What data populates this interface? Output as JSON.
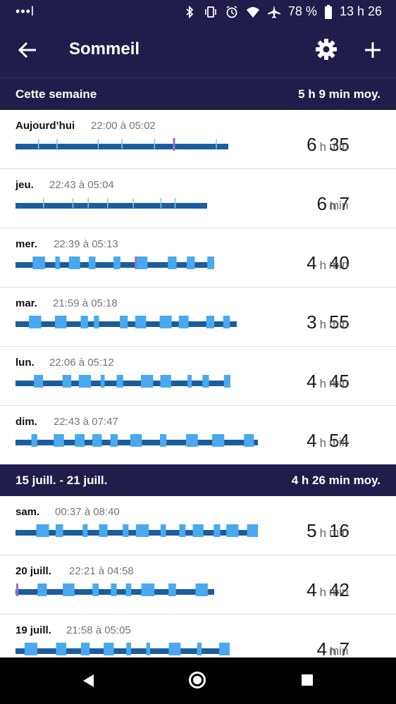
{
  "status": {
    "signal": "•••l",
    "battery": "78 %",
    "time": "13 h 26"
  },
  "header": {
    "title": "Sommeil"
  },
  "colors": {
    "header_bg": "#211d4a",
    "deep": "#1b5d9c",
    "light": "#4aa9ee",
    "awake": "#7fc7f5",
    "rem": "#9a6fd1"
  },
  "sections": [
    {
      "label": "Cette semaine",
      "avg": "5 h 9 min moy."
    },
    {
      "label": "15 juill. - 21 juill.",
      "avg": "4 h 26 min moy."
    }
  ],
  "rows": [
    {
      "day": "Aujourd’hui",
      "range": "22:00 à 05:02",
      "h": "6",
      "m": "35"
    },
    {
      "day": "jeu.",
      "range": "22:43 à 05:04",
      "h": "6",
      "m": "7"
    },
    {
      "day": "mer.",
      "range": "22:39 à 05:13",
      "h": "4",
      "m": "40"
    },
    {
      "day": "mar.",
      "range": "21:59 à 05:18",
      "h": "3",
      "m": "55"
    },
    {
      "day": "lun.",
      "range": "22:06 à 05:12",
      "h": "4",
      "m": "45"
    },
    {
      "day": "dim.",
      "range": "22:43 à 07:47",
      "h": "4",
      "m": "54"
    },
    {
      "day": "sam.",
      "range": "00:37 à 08:40",
      "h": "5",
      "m": "16"
    },
    {
      "day": "20 juill.",
      "range": "22:21 à 04:58",
      "h": "4",
      "m": "42"
    },
    {
      "day": "19 juill.",
      "range": "21:58 à 05:05",
      "h": "4",
      "m": "7"
    }
  ],
  "units": {
    "hour": "h",
    "minute": "min"
  }
}
